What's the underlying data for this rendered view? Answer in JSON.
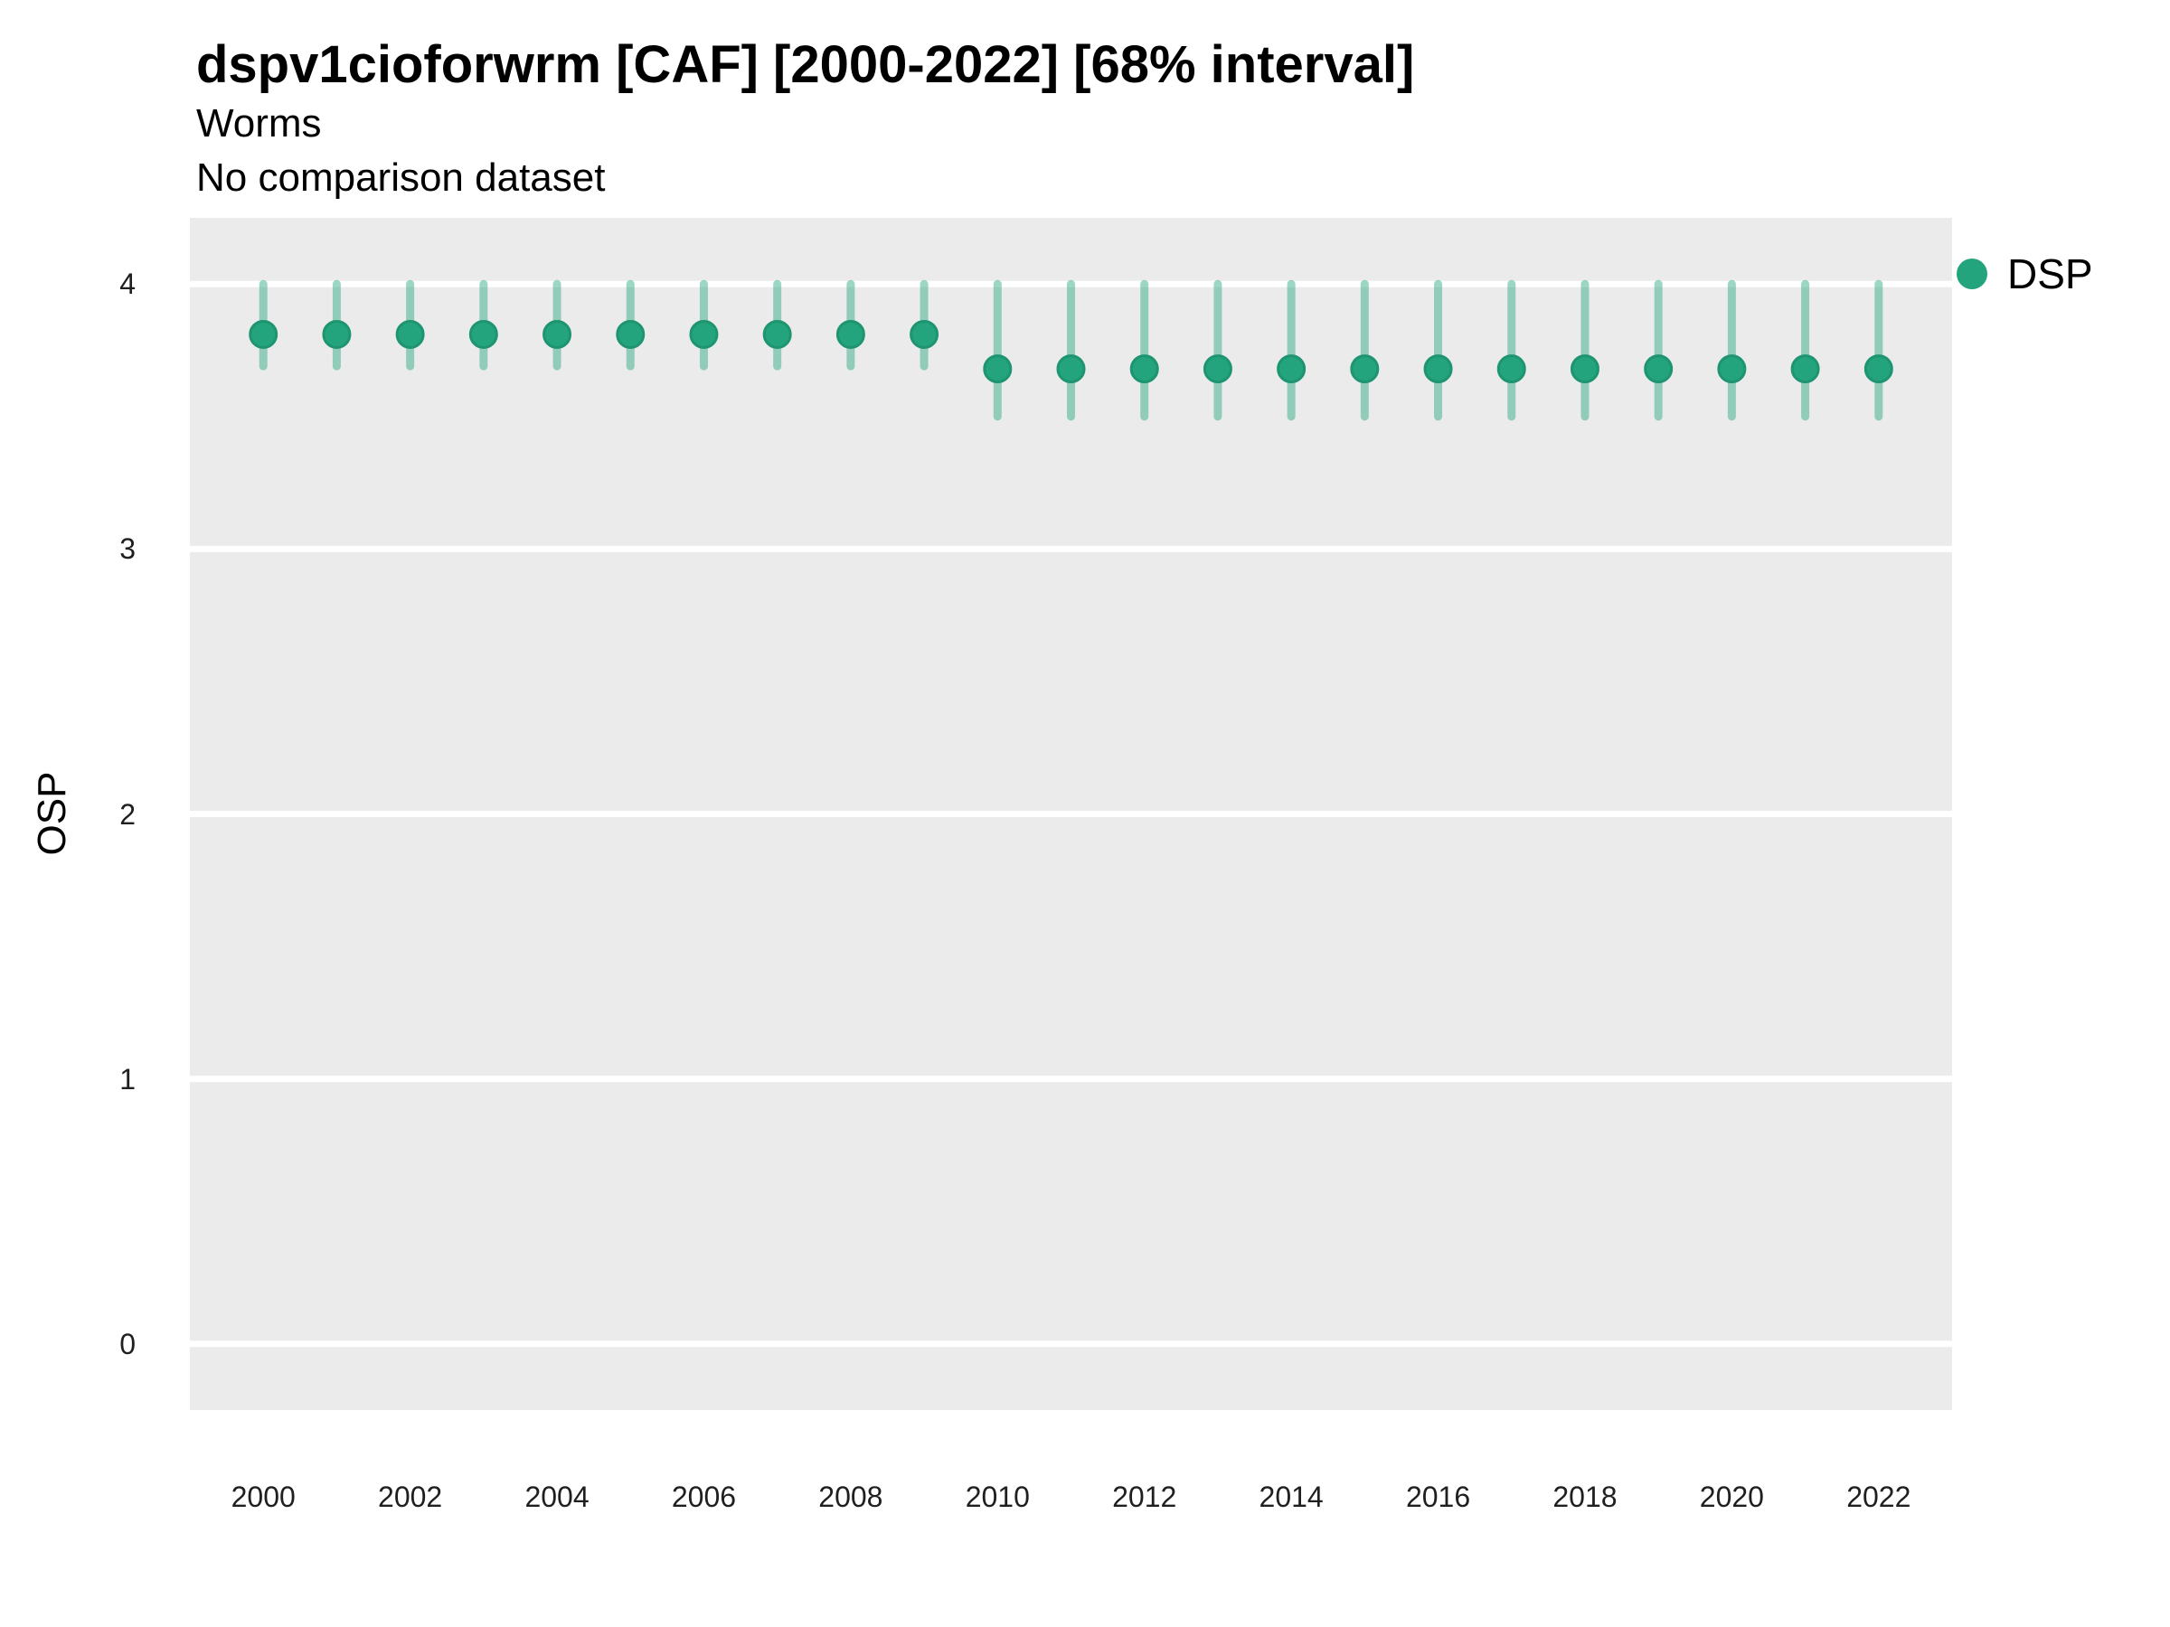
{
  "title": "dspv1cioforwrm [CAF] [2000-2022] [68% interval]",
  "subtitle1": "Worms",
  "subtitle2": "No comparison dataset",
  "legend": {
    "items": [
      {
        "label": "DSP",
        "color": "#23A47C"
      }
    ]
  },
  "colors": {
    "panel_bg": "#EBEBEB",
    "gridline": "#FFFFFF",
    "point_fill": "#23A47C",
    "point_stroke": "#1E9470",
    "interval_bar": "rgba(35,164,124,0.45)",
    "tick_text": "#1F1F1F",
    "title_text": "#000000"
  },
  "chart_data": {
    "type": "scatter",
    "title": "dspv1cioforwrm [CAF] [2000-2022] [68% interval]",
    "subtitle": "Worms",
    "caption": "No comparison dataset",
    "xlabel": "",
    "ylabel": "OSP",
    "interval": "68%",
    "legend_position": "right",
    "grid": "major-white-on-gray",
    "xlim": [
      1999,
      2023
    ],
    "ylim": [
      -0.25,
      4.25
    ],
    "x_ticks": [
      2000,
      2002,
      2004,
      2006,
      2008,
      2010,
      2012,
      2014,
      2016,
      2018,
      2020,
      2022
    ],
    "y_ticks": [
      0,
      1,
      2,
      3,
      4
    ],
    "series": [
      {
        "name": "DSP",
        "points": [
          {
            "year": 2000,
            "mid": 3.81,
            "lo": 3.69,
            "hi": 4.0
          },
          {
            "year": 2001,
            "mid": 3.81,
            "lo": 3.69,
            "hi": 4.0
          },
          {
            "year": 2002,
            "mid": 3.81,
            "lo": 3.69,
            "hi": 4.0
          },
          {
            "year": 2003,
            "mid": 3.81,
            "lo": 3.69,
            "hi": 4.0
          },
          {
            "year": 2004,
            "mid": 3.81,
            "lo": 3.69,
            "hi": 4.0
          },
          {
            "year": 2005,
            "mid": 3.81,
            "lo": 3.69,
            "hi": 4.0
          },
          {
            "year": 2006,
            "mid": 3.81,
            "lo": 3.69,
            "hi": 4.0
          },
          {
            "year": 2007,
            "mid": 3.81,
            "lo": 3.69,
            "hi": 4.0
          },
          {
            "year": 2008,
            "mid": 3.81,
            "lo": 3.69,
            "hi": 4.0
          },
          {
            "year": 2009,
            "mid": 3.81,
            "lo": 3.69,
            "hi": 4.0
          },
          {
            "year": 2010,
            "mid": 3.68,
            "lo": 3.5,
            "hi": 4.0
          },
          {
            "year": 2011,
            "mid": 3.68,
            "lo": 3.5,
            "hi": 4.0
          },
          {
            "year": 2012,
            "mid": 3.68,
            "lo": 3.5,
            "hi": 4.0
          },
          {
            "year": 2013,
            "mid": 3.68,
            "lo": 3.5,
            "hi": 4.0
          },
          {
            "year": 2014,
            "mid": 3.68,
            "lo": 3.5,
            "hi": 4.0
          },
          {
            "year": 2015,
            "mid": 3.68,
            "lo": 3.5,
            "hi": 4.0
          },
          {
            "year": 2016,
            "mid": 3.68,
            "lo": 3.5,
            "hi": 4.0
          },
          {
            "year": 2017,
            "mid": 3.68,
            "lo": 3.5,
            "hi": 4.0
          },
          {
            "year": 2018,
            "mid": 3.68,
            "lo": 3.5,
            "hi": 4.0
          },
          {
            "year": 2019,
            "mid": 3.68,
            "lo": 3.5,
            "hi": 4.0
          },
          {
            "year": 2020,
            "mid": 3.68,
            "lo": 3.5,
            "hi": 4.0
          },
          {
            "year": 2021,
            "mid": 3.68,
            "lo": 3.5,
            "hi": 4.0
          },
          {
            "year": 2022,
            "mid": 3.68,
            "lo": 3.5,
            "hi": 4.0
          }
        ]
      }
    ]
  }
}
